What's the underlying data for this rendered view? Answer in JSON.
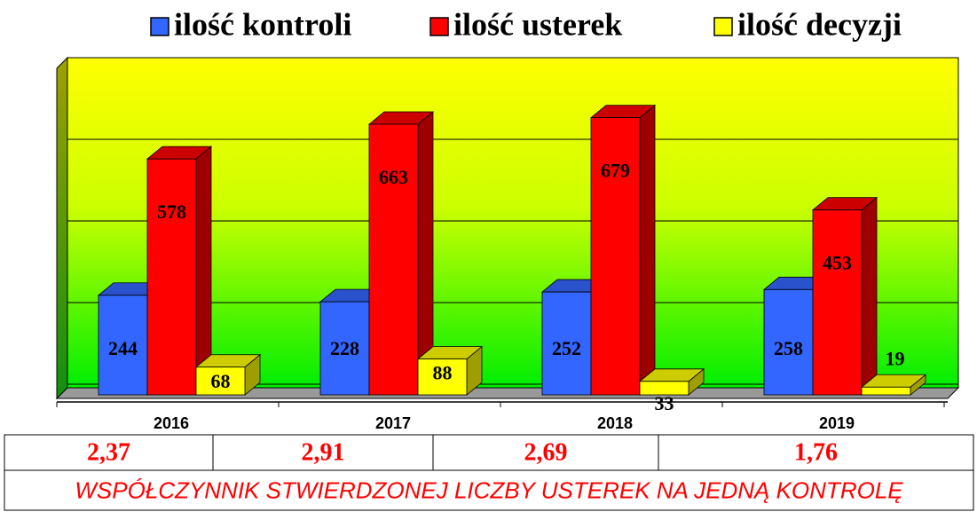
{
  "chart_data": {
    "type": "bar3d",
    "categories": [
      "2016",
      "2017",
      "2018",
      "2019"
    ],
    "series": [
      {
        "name": "ilość kontroli",
        "color": "#3366ff",
        "values": [
          244,
          228,
          252,
          258
        ]
      },
      {
        "name": "ilość usterek",
        "color": "#ff0000",
        "values": [
          578,
          663,
          679,
          453
        ]
      },
      {
        "name": "ilość decyzji",
        "color": "#ffff00",
        "values": [
          68,
          88,
          33,
          19
        ]
      }
    ],
    "ylim": [
      0,
      800
    ],
    "yticks": [
      0,
      200,
      400,
      600,
      800
    ],
    "grid": true,
    "legend": "top"
  },
  "table": {
    "rows": [
      [
        "2,37",
        "2,91",
        "2,69",
        "1,76"
      ]
    ],
    "caption": "WSPÓŁCZYNNIK STWIERDZONEJ LICZBY USTEREK NA JEDNĄ KONTROLĘ"
  }
}
